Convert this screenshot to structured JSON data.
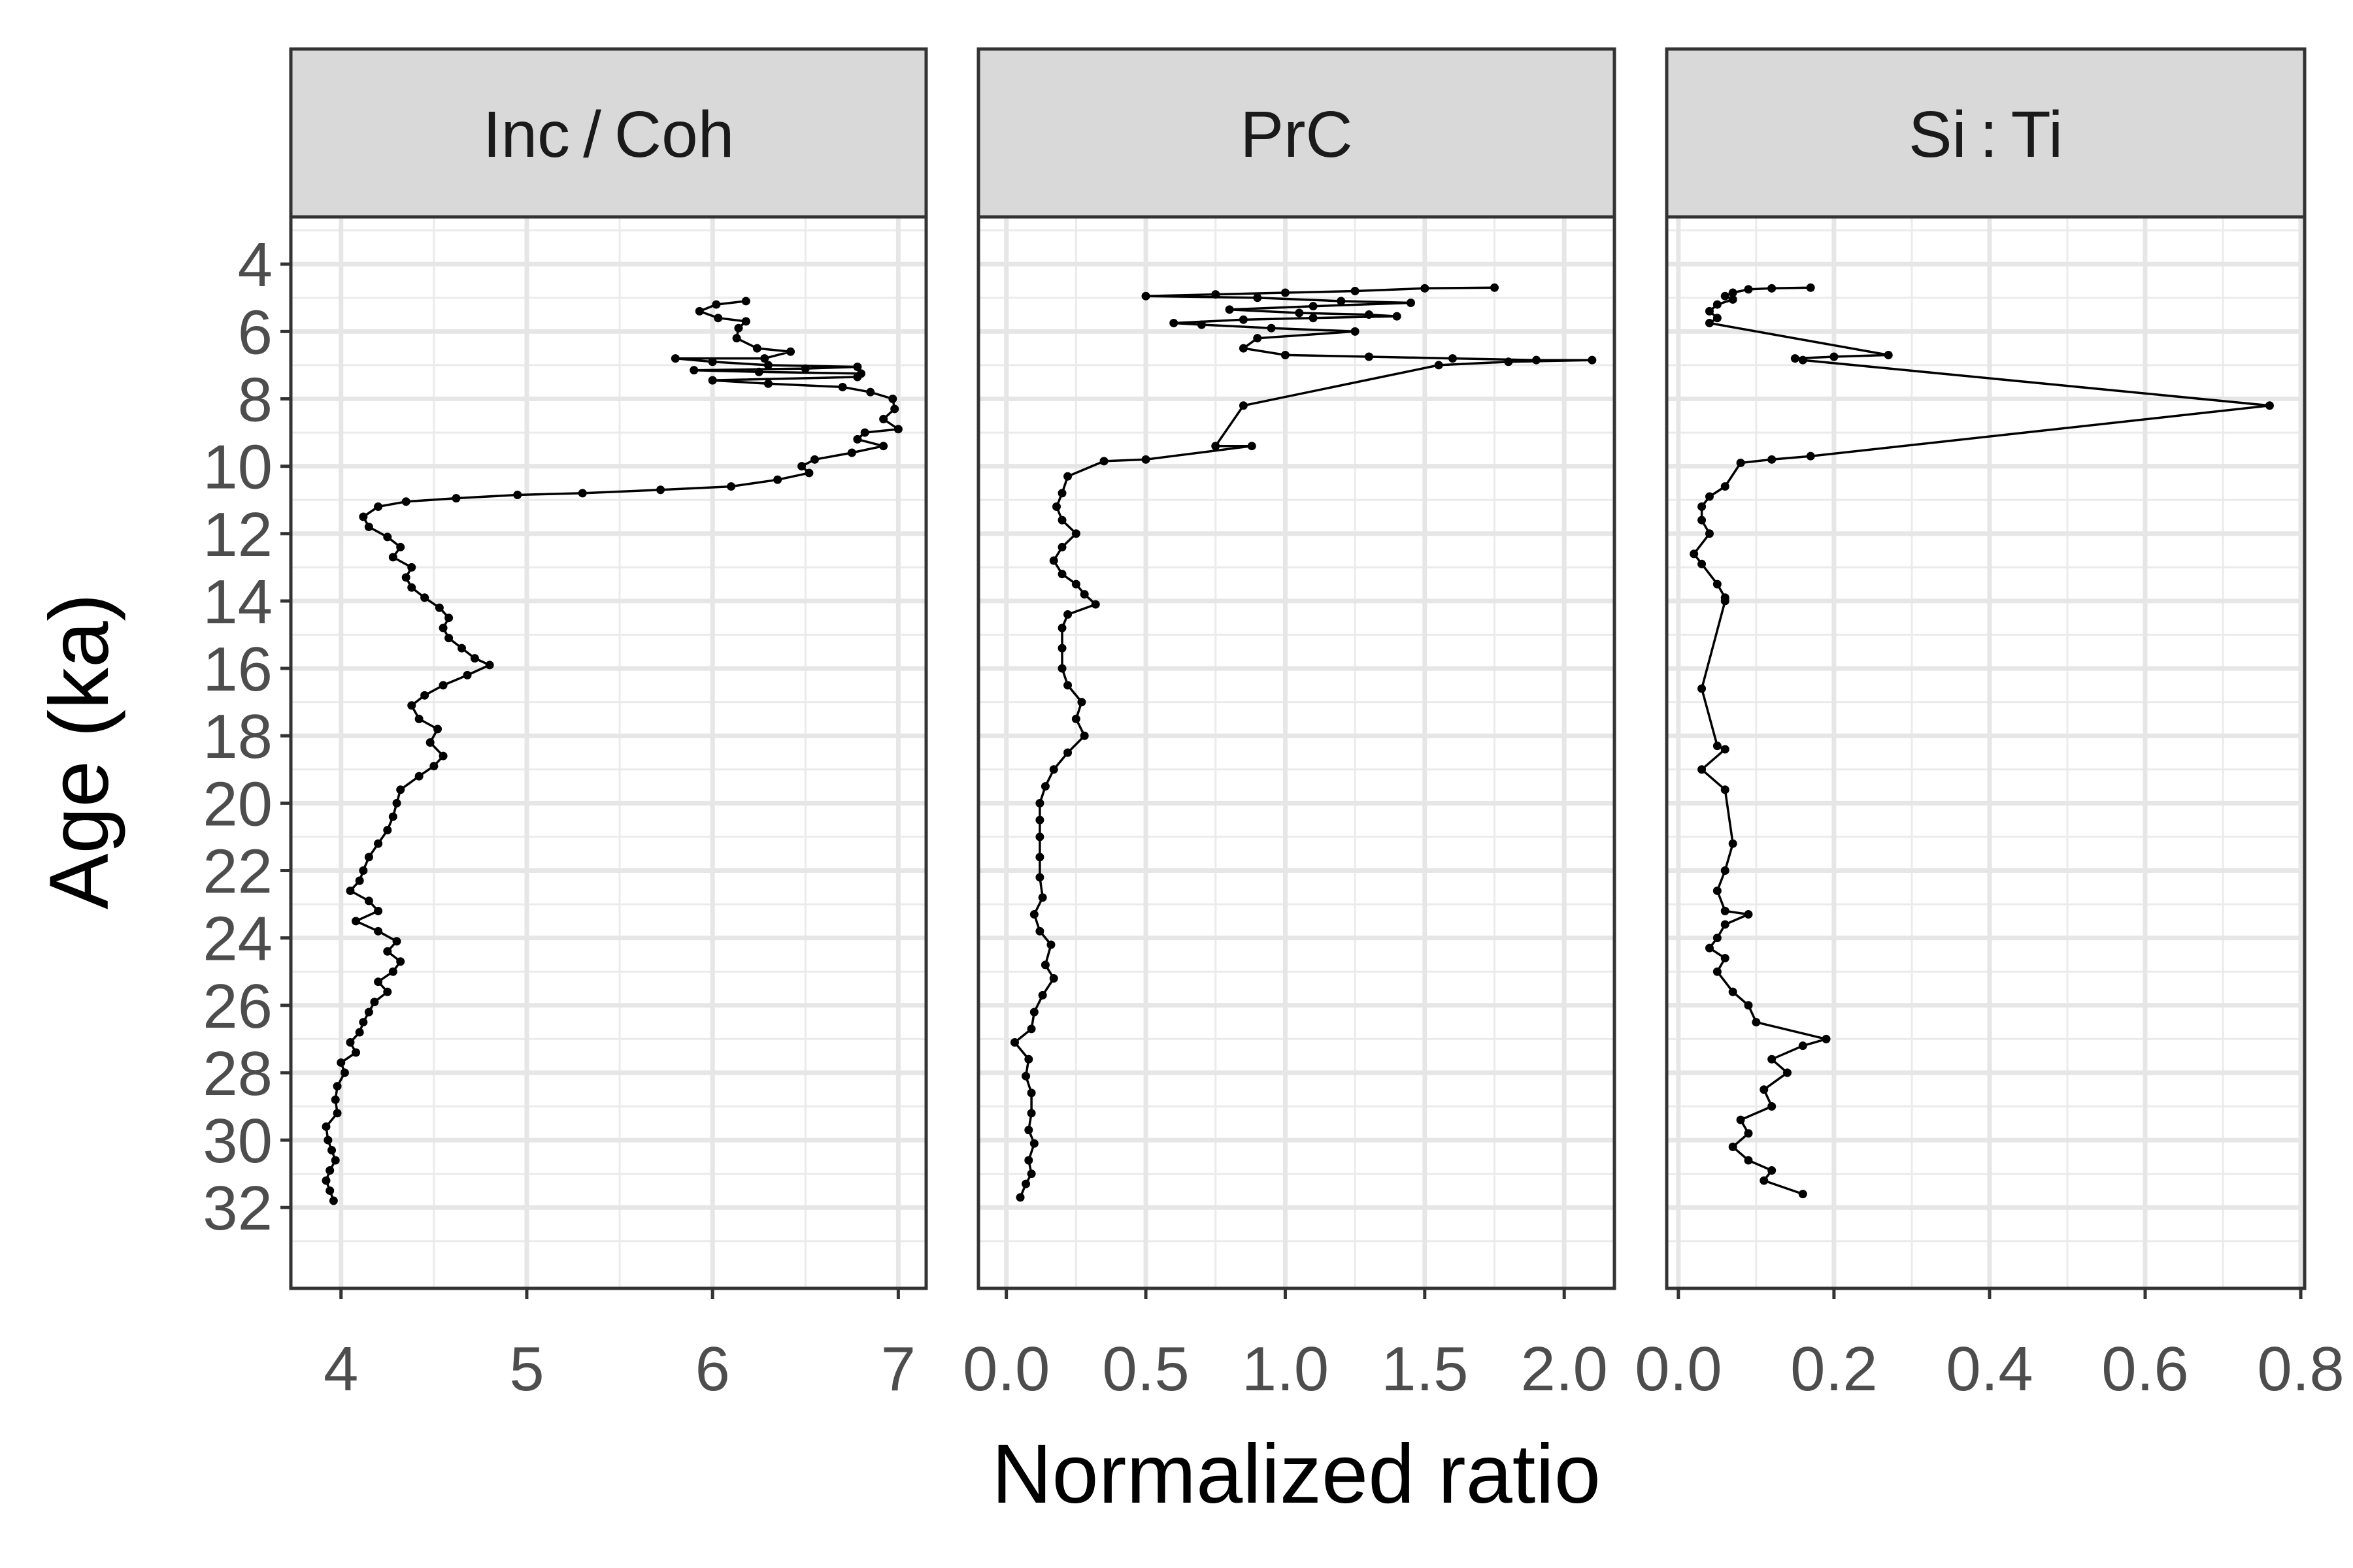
{
  "chart_data": {
    "type": "line",
    "xlabel": "Normalized ratio",
    "ylabel": "Age (ka)",
    "y_reversed": true,
    "ylim": [
      2.6,
      34.4
    ],
    "y_ticks": [
      4,
      6,
      8,
      10,
      12,
      14,
      16,
      18,
      20,
      22,
      24,
      26,
      28,
      30,
      32
    ],
    "grid": true,
    "marker": "point",
    "panels": [
      {
        "strip": "Inc / Coh",
        "xlim": [
          3.73,
          7.15
        ],
        "x_ticks": [
          4,
          5,
          6,
          7
        ],
        "points": [
          [
            6.18,
            5.1
          ],
          [
            6.02,
            5.2
          ],
          [
            5.93,
            5.4
          ],
          [
            6.03,
            5.6
          ],
          [
            6.18,
            5.7
          ],
          [
            6.14,
            5.9
          ],
          [
            6.13,
            6.2
          ],
          [
            6.24,
            6.5
          ],
          [
            6.42,
            6.6
          ],
          [
            6.28,
            6.8
          ],
          [
            5.8,
            6.8
          ],
          [
            6.0,
            6.9
          ],
          [
            6.3,
            7.0
          ],
          [
            6.78,
            7.05
          ],
          [
            6.5,
            7.1
          ],
          [
            5.9,
            7.15
          ],
          [
            6.25,
            7.2
          ],
          [
            6.8,
            7.25
          ],
          [
            6.78,
            7.35
          ],
          [
            6.0,
            7.45
          ],
          [
            6.3,
            7.55
          ],
          [
            6.7,
            7.65
          ],
          [
            6.85,
            7.8
          ],
          [
            6.97,
            8.0
          ],
          [
            6.98,
            8.3
          ],
          [
            6.92,
            8.6
          ],
          [
            7.0,
            8.9
          ],
          [
            6.82,
            9.0
          ],
          [
            6.78,
            9.2
          ],
          [
            6.92,
            9.4
          ],
          [
            6.75,
            9.6
          ],
          [
            6.55,
            9.8
          ],
          [
            6.48,
            10.0
          ],
          [
            6.52,
            10.2
          ],
          [
            6.35,
            10.4
          ],
          [
            6.1,
            10.6
          ],
          [
            5.72,
            10.7
          ],
          [
            5.3,
            10.8
          ],
          [
            4.95,
            10.85
          ],
          [
            4.62,
            10.95
          ],
          [
            4.35,
            11.05
          ],
          [
            4.2,
            11.2
          ],
          [
            4.12,
            11.5
          ],
          [
            4.15,
            11.8
          ],
          [
            4.25,
            12.1
          ],
          [
            4.32,
            12.4
          ],
          [
            4.28,
            12.7
          ],
          [
            4.38,
            13.0
          ],
          [
            4.35,
            13.3
          ],
          [
            4.38,
            13.6
          ],
          [
            4.45,
            13.9
          ],
          [
            4.53,
            14.2
          ],
          [
            4.58,
            14.5
          ],
          [
            4.55,
            14.8
          ],
          [
            4.58,
            15.1
          ],
          [
            4.65,
            15.4
          ],
          [
            4.72,
            15.7
          ],
          [
            4.8,
            15.9
          ],
          [
            4.68,
            16.2
          ],
          [
            4.55,
            16.5
          ],
          [
            4.45,
            16.8
          ],
          [
            4.38,
            17.1
          ],
          [
            4.42,
            17.5
          ],
          [
            4.52,
            17.8
          ],
          [
            4.48,
            18.2
          ],
          [
            4.55,
            18.6
          ],
          [
            4.5,
            18.9
          ],
          [
            4.42,
            19.2
          ],
          [
            4.32,
            19.6
          ],
          [
            4.3,
            20.0
          ],
          [
            4.28,
            20.4
          ],
          [
            4.25,
            20.8
          ],
          [
            4.2,
            21.2
          ],
          [
            4.15,
            21.6
          ],
          [
            4.12,
            22.0
          ],
          [
            4.1,
            22.3
          ],
          [
            4.05,
            22.6
          ],
          [
            4.15,
            22.9
          ],
          [
            4.2,
            23.2
          ],
          [
            4.08,
            23.5
          ],
          [
            4.2,
            23.8
          ],
          [
            4.3,
            24.1
          ],
          [
            4.25,
            24.4
          ],
          [
            4.32,
            24.7
          ],
          [
            4.28,
            25.0
          ],
          [
            4.2,
            25.3
          ],
          [
            4.25,
            25.6
          ],
          [
            4.18,
            25.9
          ],
          [
            4.15,
            26.2
          ],
          [
            4.12,
            26.5
          ],
          [
            4.1,
            26.8
          ],
          [
            4.05,
            27.1
          ],
          [
            4.08,
            27.4
          ],
          [
            4.0,
            27.7
          ],
          [
            4.02,
            28.0
          ],
          [
            3.98,
            28.4
          ],
          [
            3.97,
            28.8
          ],
          [
            3.98,
            29.2
          ],
          [
            3.92,
            29.6
          ],
          [
            3.93,
            30.0
          ],
          [
            3.95,
            30.3
          ],
          [
            3.97,
            30.6
          ],
          [
            3.94,
            30.9
          ],
          [
            3.92,
            31.2
          ],
          [
            3.94,
            31.5
          ],
          [
            3.96,
            31.8
          ]
        ]
      },
      {
        "strip": "PrC",
        "xlim": [
          -0.1,
          2.18
        ],
        "x_ticks": [
          0.0,
          0.5,
          1.0,
          1.5,
          2.0
        ],
        "x_tick_labels": [
          "0.0",
          "0.5",
          "1.0",
          "1.5",
          "2.0"
        ],
        "points": [
          [
            1.75,
            4.7
          ],
          [
            1.5,
            4.72
          ],
          [
            1.25,
            4.8
          ],
          [
            1.0,
            4.85
          ],
          [
            0.75,
            4.9
          ],
          [
            0.5,
            4.95
          ],
          [
            0.9,
            5.0
          ],
          [
            1.2,
            5.1
          ],
          [
            1.45,
            5.15
          ],
          [
            1.1,
            5.25
          ],
          [
            0.8,
            5.35
          ],
          [
            1.05,
            5.45
          ],
          [
            1.3,
            5.5
          ],
          [
            1.4,
            5.55
          ],
          [
            1.1,
            5.6
          ],
          [
            0.85,
            5.65
          ],
          [
            0.6,
            5.75
          ],
          [
            0.7,
            5.8
          ],
          [
            0.95,
            5.9
          ],
          [
            1.25,
            6.0
          ],
          [
            0.9,
            6.2
          ],
          [
            0.85,
            6.5
          ],
          [
            1.0,
            6.7
          ],
          [
            1.3,
            6.75
          ],
          [
            1.6,
            6.8
          ],
          [
            1.9,
            6.85
          ],
          [
            2.1,
            6.85
          ],
          [
            1.8,
            6.9
          ],
          [
            1.55,
            7.0
          ],
          [
            0.85,
            8.2
          ],
          [
            0.75,
            9.4
          ],
          [
            0.88,
            9.4
          ],
          [
            0.5,
            9.8
          ],
          [
            0.35,
            9.85
          ],
          [
            0.22,
            10.3
          ],
          [
            0.2,
            10.8
          ],
          [
            0.18,
            11.2
          ],
          [
            0.2,
            11.6
          ],
          [
            0.25,
            12.0
          ],
          [
            0.2,
            12.4
          ],
          [
            0.17,
            12.8
          ],
          [
            0.2,
            13.2
          ],
          [
            0.25,
            13.5
          ],
          [
            0.28,
            13.8
          ],
          [
            0.32,
            14.1
          ],
          [
            0.22,
            14.4
          ],
          [
            0.2,
            14.8
          ],
          [
            0.2,
            15.4
          ],
          [
            0.2,
            16.0
          ],
          [
            0.22,
            16.5
          ],
          [
            0.27,
            17.0
          ],
          [
            0.25,
            17.5
          ],
          [
            0.28,
            18.0
          ],
          [
            0.22,
            18.5
          ],
          [
            0.17,
            19.0
          ],
          [
            0.14,
            19.5
          ],
          [
            0.12,
            20.0
          ],
          [
            0.12,
            20.5
          ],
          [
            0.12,
            21.0
          ],
          [
            0.12,
            21.6
          ],
          [
            0.12,
            22.2
          ],
          [
            0.13,
            22.8
          ],
          [
            0.1,
            23.3
          ],
          [
            0.12,
            23.8
          ],
          [
            0.16,
            24.2
          ],
          [
            0.14,
            24.8
          ],
          [
            0.17,
            25.2
          ],
          [
            0.13,
            25.7
          ],
          [
            0.1,
            26.2
          ],
          [
            0.09,
            26.7
          ],
          [
            0.03,
            27.1
          ],
          [
            0.08,
            27.6
          ],
          [
            0.07,
            28.1
          ],
          [
            0.09,
            28.6
          ],
          [
            0.09,
            29.2
          ],
          [
            0.08,
            29.7
          ],
          [
            0.1,
            30.1
          ],
          [
            0.08,
            30.6
          ],
          [
            0.09,
            31.0
          ],
          [
            0.07,
            31.3
          ],
          [
            0.05,
            31.7
          ]
        ]
      },
      {
        "strip": "Si : Ti",
        "xlim": [
          -0.015,
          0.805
        ],
        "x_ticks": [
          0.0,
          0.2,
          0.4,
          0.6,
          0.8
        ],
        "x_tick_labels": [
          "0.0",
          "0.2",
          "0.4",
          "0.6",
          "0.8"
        ],
        "points": [
          [
            0.17,
            4.7
          ],
          [
            0.12,
            4.72
          ],
          [
            0.09,
            4.75
          ],
          [
            0.07,
            4.85
          ],
          [
            0.06,
            4.95
          ],
          [
            0.07,
            5.05
          ],
          [
            0.05,
            5.2
          ],
          [
            0.04,
            5.4
          ],
          [
            0.05,
            5.6
          ],
          [
            0.04,
            5.75
          ],
          [
            0.27,
            6.7
          ],
          [
            0.2,
            6.75
          ],
          [
            0.15,
            6.8
          ],
          [
            0.16,
            6.85
          ],
          [
            0.76,
            8.2
          ],
          [
            0.17,
            9.7
          ],
          [
            0.12,
            9.8
          ],
          [
            0.08,
            9.9
          ],
          [
            0.06,
            10.6
          ],
          [
            0.04,
            10.9
          ],
          [
            0.03,
            11.2
          ],
          [
            0.03,
            11.6
          ],
          [
            0.04,
            12.0
          ],
          [
            0.02,
            12.6
          ],
          [
            0.03,
            12.9
          ],
          [
            0.05,
            13.5
          ],
          [
            0.06,
            13.9
          ],
          [
            0.06,
            14.0
          ],
          [
            0.03,
            16.6
          ],
          [
            0.05,
            18.3
          ],
          [
            0.06,
            18.4
          ],
          [
            0.03,
            19.0
          ],
          [
            0.06,
            19.6
          ],
          [
            0.07,
            21.2
          ],
          [
            0.06,
            22.0
          ],
          [
            0.05,
            22.6
          ],
          [
            0.06,
            23.2
          ],
          [
            0.09,
            23.3
          ],
          [
            0.06,
            23.6
          ],
          [
            0.05,
            24.0
          ],
          [
            0.04,
            24.3
          ],
          [
            0.06,
            24.6
          ],
          [
            0.05,
            25.0
          ],
          [
            0.07,
            25.6
          ],
          [
            0.09,
            26.0
          ],
          [
            0.1,
            26.5
          ],
          [
            0.19,
            27.0
          ],
          [
            0.16,
            27.2
          ],
          [
            0.12,
            27.6
          ],
          [
            0.14,
            28.0
          ],
          [
            0.11,
            28.5
          ],
          [
            0.12,
            29.0
          ],
          [
            0.08,
            29.4
          ],
          [
            0.09,
            29.8
          ],
          [
            0.07,
            30.2
          ],
          [
            0.09,
            30.6
          ],
          [
            0.12,
            30.9
          ],
          [
            0.11,
            31.2
          ],
          [
            0.16,
            31.6
          ]
        ]
      }
    ]
  }
}
